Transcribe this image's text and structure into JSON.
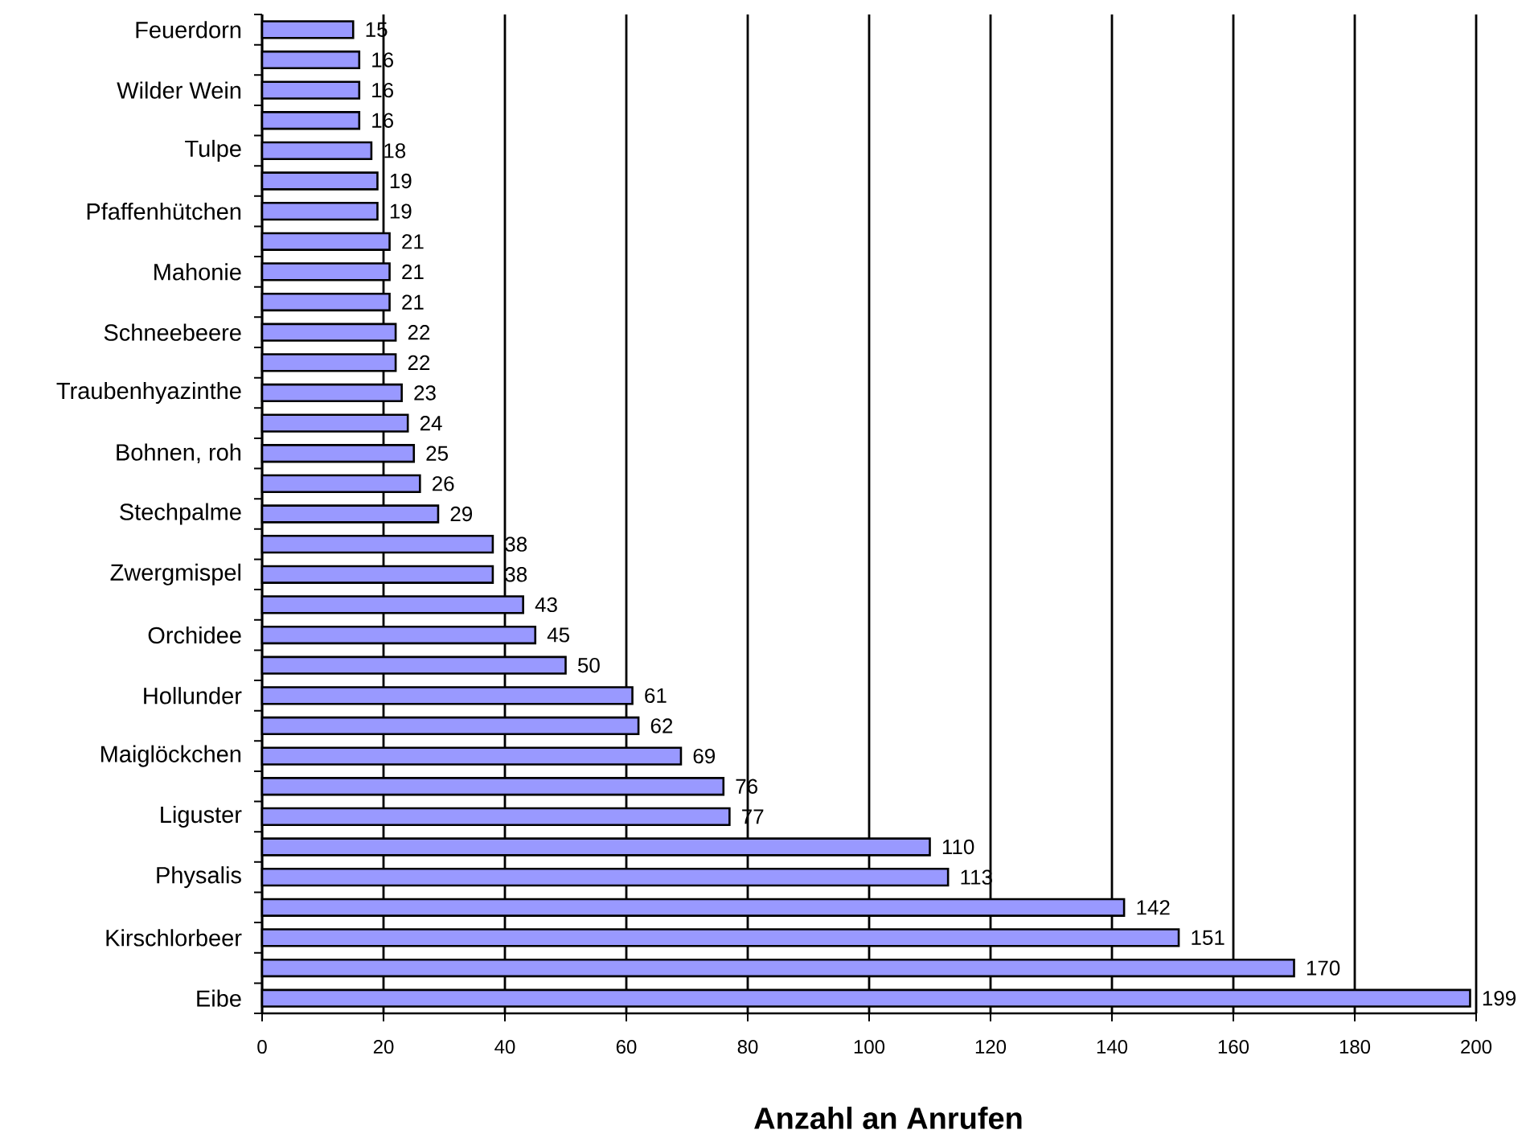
{
  "chart_data": {
    "type": "bar",
    "orientation": "horizontal",
    "xlabel": "Anzahl an Anrufen",
    "categories": [
      "Feuerdorn",
      null,
      "Wilder Wein",
      null,
      "Tulpe",
      null,
      "Pfaffenhütchen",
      null,
      "Mahonie",
      null,
      "Schneebeere",
      null,
      "Traubenhyazinthe",
      null,
      "Bohnen, roh",
      null,
      "Stechpalme",
      null,
      "Zwergmispel",
      null,
      "Orchidee",
      null,
      "Hollunder",
      null,
      "Maiglöckchen",
      null,
      "Liguster",
      null,
      "Physalis",
      null,
      "Kirschlorbeer",
      null,
      "Eibe"
    ],
    "values": [
      15,
      16,
      16,
      16,
      18,
      19,
      19,
      21,
      21,
      21,
      22,
      22,
      23,
      24,
      25,
      26,
      29,
      38,
      38,
      43,
      45,
      50,
      61,
      62,
      69,
      76,
      77,
      110,
      113,
      142,
      151,
      170,
      199
    ],
    "color": "#9999ff",
    "xlim": [
      0,
      200
    ],
    "xticks": [
      0,
      20,
      40,
      60,
      80,
      100,
      120,
      140,
      160,
      180,
      200
    ],
    "grid": "x",
    "data_labels": true
  }
}
